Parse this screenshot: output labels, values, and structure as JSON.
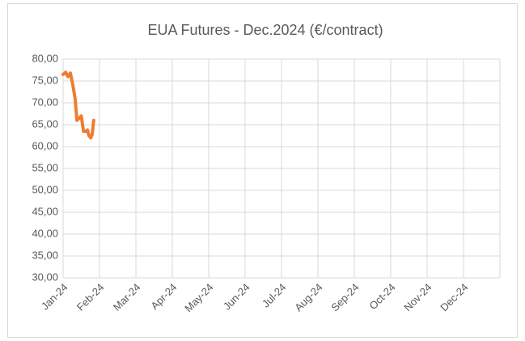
{
  "chart_data": {
    "type": "line",
    "title": "EUA Futures - Dec.2024 (€/contract)",
    "x": [
      0,
      0.07,
      0.13,
      0.2,
      0.27,
      0.33,
      0.38,
      0.44,
      0.5,
      0.56,
      0.62,
      0.67,
      0.71,
      0.76,
      0.8,
      0.84
    ],
    "series": [
      {
        "name": "EUA Futures - Dec.2024",
        "color": "#ed7d31",
        "values": [
          76.5,
          77,
          76,
          76.8,
          74,
          71,
          66,
          66.5,
          67,
          63.5,
          63.5,
          63.8,
          62.5,
          62,
          62.8,
          66
        ]
      }
    ],
    "xlim": [
      0,
      12
    ],
    "xticks": [
      {
        "value": 0,
        "label": "Jan-24"
      },
      {
        "value": 1,
        "label": "Feb-24"
      },
      {
        "value": 2,
        "label": "Mar-24"
      },
      {
        "value": 3,
        "label": "Apr-24"
      },
      {
        "value": 4,
        "label": "May-24"
      },
      {
        "value": 5,
        "label": "Jun-24"
      },
      {
        "value": 6,
        "label": "Jul-24"
      },
      {
        "value": 7,
        "label": "Aug-24"
      },
      {
        "value": 8,
        "label": "Sep-24"
      },
      {
        "value": 9,
        "label": "Oct-24"
      },
      {
        "value": 10,
        "label": "Nov-24"
      },
      {
        "value": 11,
        "label": "Dec-24"
      }
    ],
    "ylim": [
      30,
      80
    ],
    "yticks": [
      {
        "value": 30,
        "label": "30,00"
      },
      {
        "value": 35,
        "label": "35,00"
      },
      {
        "value": 40,
        "label": "40,00"
      },
      {
        "value": 45,
        "label": "45,00"
      },
      {
        "value": 50,
        "label": "50,00"
      },
      {
        "value": 55,
        "label": "55,00"
      },
      {
        "value": 60,
        "label": "60,00"
      },
      {
        "value": 65,
        "label": "65,00"
      },
      {
        "value": 70,
        "label": "70,00"
      },
      {
        "value": 75,
        "label": "75,00"
      },
      {
        "value": 80,
        "label": "80,00"
      }
    ],
    "grid": true
  }
}
